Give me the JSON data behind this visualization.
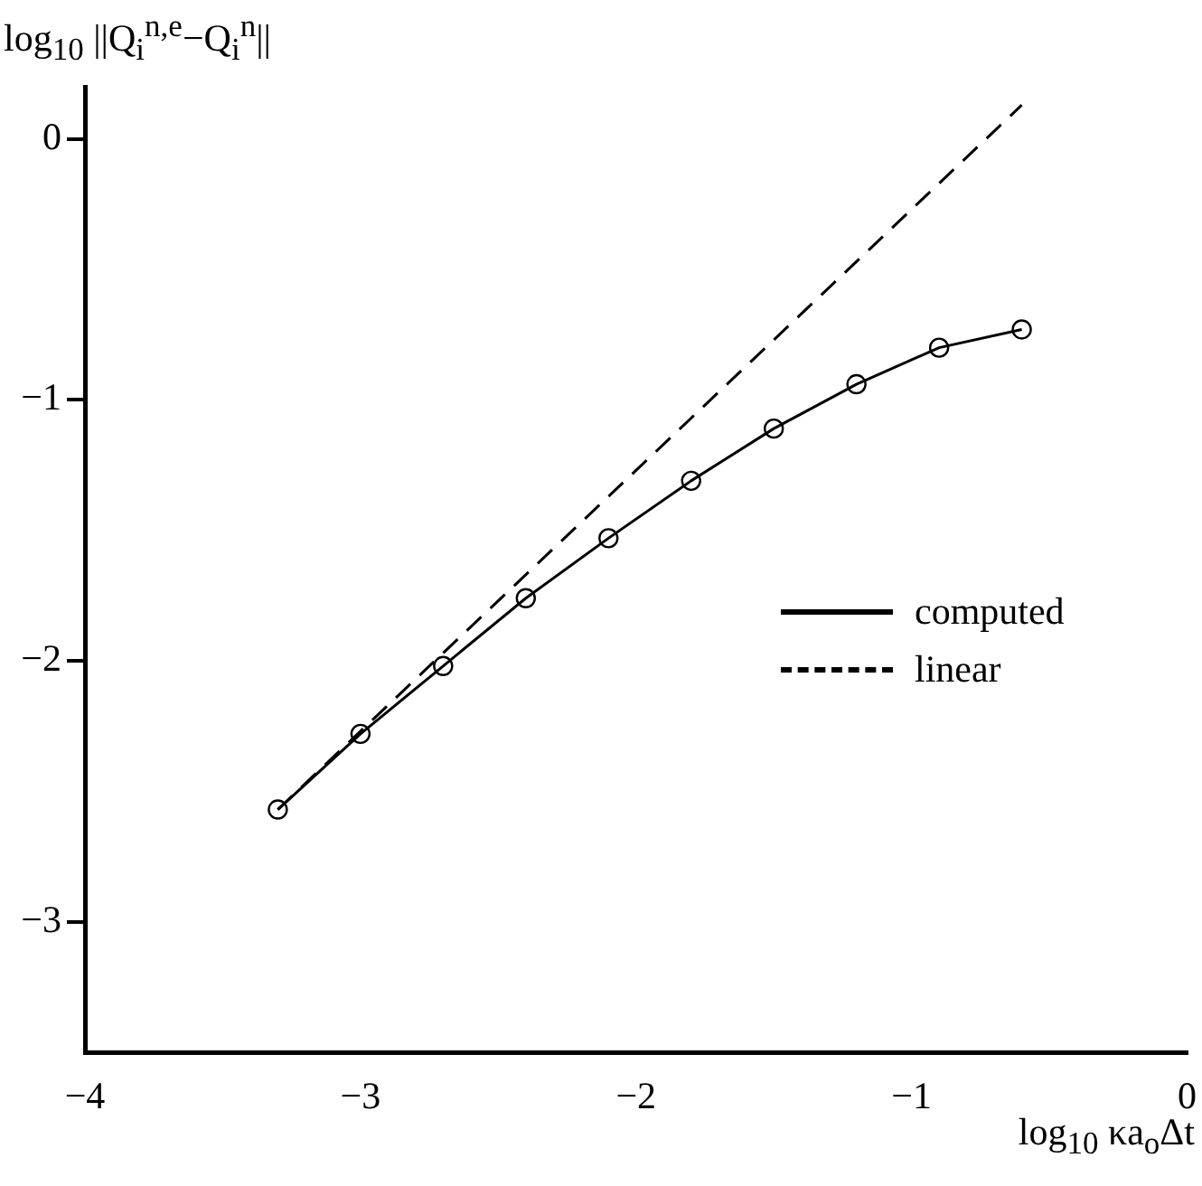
{
  "chart_data": {
    "type": "line",
    "ylabel": "log$_{10}$ ||Q$_{i}$$^{n,e}$−Q$_{i}$$^{n}$||",
    "xlabel": "log$_{10}$ κa$_{o}$Δt",
    "xlim": [
      -4,
      0
    ],
    "xticks": [
      -4,
      -3,
      -2,
      -1,
      0
    ],
    "ylim": [
      -3.5,
      0.2
    ],
    "yticks": [
      -3,
      -2,
      -1,
      0
    ],
    "grid": false,
    "legend": "right",
    "series": [
      {
        "name": "computed",
        "color": "#000000",
        "marker": "circle",
        "line_style": "solid",
        "x": [
          -3.3,
          -3.0,
          -2.7,
          -2.4,
          -2.1,
          -1.8,
          -1.5,
          -1.2,
          -0.9,
          -0.6
        ],
        "values": [
          -2.57,
          -2.28,
          -2.02,
          -1.76,
          -1.53,
          -1.31,
          -1.11,
          -0.94,
          -0.8,
          -0.73
        ]
      },
      {
        "name": "linear",
        "color": "#000000",
        "marker": "none",
        "line_style": "dashed",
        "x": [
          -3.3,
          -0.6
        ],
        "values": [
          -2.57,
          0.13
        ]
      }
    ]
  }
}
